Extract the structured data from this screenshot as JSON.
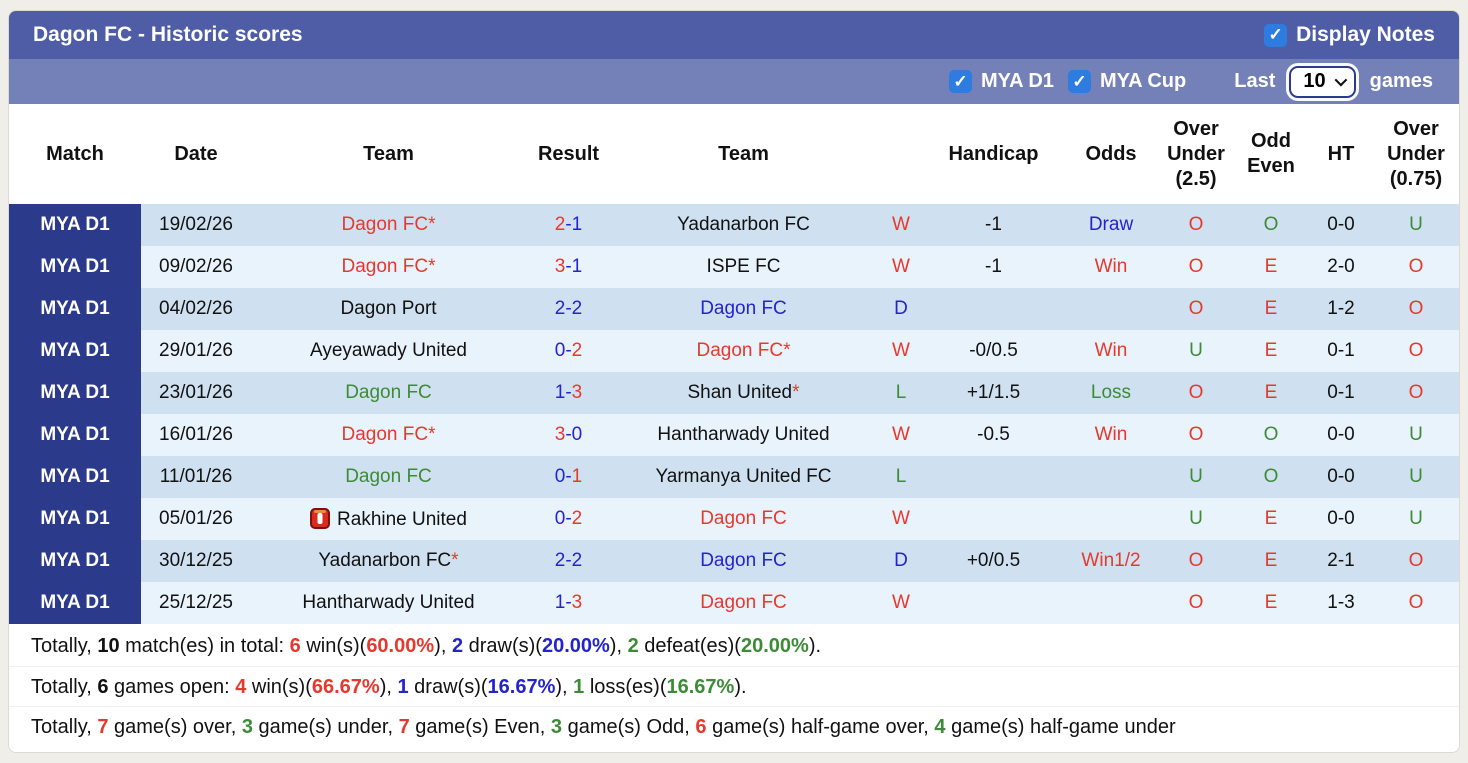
{
  "colors": {
    "red": "#e6392e",
    "blue": "#2424cc",
    "green": "#3d8b37",
    "black": "#111111",
    "navy": "#2c3a8c",
    "title_bar": "#4f5da7",
    "filter_bar": "#7481b8",
    "stripe_dark": "#cfe1f0",
    "stripe_light": "#e9f3fb",
    "checkbox_blue": "#2e7ce0"
  },
  "header": {
    "title": "Dagon FC - Historic scores",
    "display_notes_label": "Display Notes",
    "display_notes_checked": true
  },
  "filter": {
    "leagues": [
      {
        "label": "MYA D1",
        "checked": true
      },
      {
        "label": "MYA Cup",
        "checked": true
      }
    ],
    "last_label": "Last",
    "games_select": {
      "value": "10",
      "options": [
        "10"
      ]
    },
    "games_label": "games"
  },
  "table": {
    "columns": [
      {
        "label": "Match"
      },
      {
        "label": "Date"
      },
      {
        "label": "Team"
      },
      {
        "label": "Result"
      },
      {
        "label": "Team"
      },
      {
        "label": ""
      },
      {
        "label": "Handicap"
      },
      {
        "label": "Odds"
      },
      {
        "label": "Over\nUnder\n(2.5)"
      },
      {
        "label": "Odd\nEven"
      },
      {
        "label": "HT"
      },
      {
        "label": "Over\nUnder\n(0.75)"
      }
    ],
    "rows": [
      {
        "league": "MYA D1",
        "date": "19/02/26",
        "home": {
          "name": "Dagon FC",
          "star": true,
          "color": "red"
        },
        "score": {
          "home": "2",
          "home_color": "red",
          "away": "1",
          "away_color": "blue"
        },
        "away": {
          "name": "Yadanarbon FC",
          "star": false,
          "color": "black"
        },
        "outcome": {
          "text": "W",
          "color": "red"
        },
        "handicap": "-1",
        "odds": {
          "text": "Draw",
          "color": "blue"
        },
        "over_under_25": {
          "text": "O",
          "color": "red"
        },
        "odd_even": {
          "text": "O",
          "color": "green"
        },
        "ht": "0-0",
        "over_under_075": {
          "text": "U",
          "color": "green"
        }
      },
      {
        "league": "MYA D1",
        "date": "09/02/26",
        "home": {
          "name": "Dagon FC",
          "star": true,
          "color": "red"
        },
        "score": {
          "home": "3",
          "home_color": "red",
          "away": "1",
          "away_color": "blue"
        },
        "away": {
          "name": "ISPE FC",
          "star": false,
          "color": "black"
        },
        "outcome": {
          "text": "W",
          "color": "red"
        },
        "handicap": "-1",
        "odds": {
          "text": "Win",
          "color": "red"
        },
        "over_under_25": {
          "text": "O",
          "color": "red"
        },
        "odd_even": {
          "text": "E",
          "color": "red"
        },
        "ht": "2-0",
        "over_under_075": {
          "text": "O",
          "color": "red"
        }
      },
      {
        "league": "MYA D1",
        "date": "04/02/26",
        "home": {
          "name": "Dagon Port",
          "star": false,
          "color": "black"
        },
        "score": {
          "home": "2",
          "home_color": "blue",
          "away": "2",
          "away_color": "blue"
        },
        "away": {
          "name": "Dagon FC",
          "star": false,
          "color": "blue"
        },
        "outcome": {
          "text": "D",
          "color": "blue"
        },
        "handicap": "",
        "odds": {
          "text": "",
          "color": "black"
        },
        "over_under_25": {
          "text": "O",
          "color": "red"
        },
        "odd_even": {
          "text": "E",
          "color": "red"
        },
        "ht": "1-2",
        "over_under_075": {
          "text": "O",
          "color": "red"
        }
      },
      {
        "league": "MYA D1",
        "date": "29/01/26",
        "home": {
          "name": "Ayeyawady United",
          "star": false,
          "color": "black"
        },
        "score": {
          "home": "0",
          "home_color": "blue",
          "away": "2",
          "away_color": "red"
        },
        "away": {
          "name": "Dagon FC",
          "star": true,
          "color": "red"
        },
        "outcome": {
          "text": "W",
          "color": "red"
        },
        "handicap": "-0/0.5",
        "odds": {
          "text": "Win",
          "color": "red"
        },
        "over_under_25": {
          "text": "U",
          "color": "green"
        },
        "odd_even": {
          "text": "E",
          "color": "red"
        },
        "ht": "0-1",
        "over_under_075": {
          "text": "O",
          "color": "red"
        }
      },
      {
        "league": "MYA D1",
        "date": "23/01/26",
        "home": {
          "name": "Dagon FC",
          "star": false,
          "color": "green"
        },
        "score": {
          "home": "1",
          "home_color": "blue",
          "away": "3",
          "away_color": "red"
        },
        "away": {
          "name": "Shan United",
          "star": true,
          "color": "black"
        },
        "outcome": {
          "text": "L",
          "color": "green"
        },
        "handicap": "+1/1.5",
        "odds": {
          "text": "Loss",
          "color": "green"
        },
        "over_under_25": {
          "text": "O",
          "color": "red"
        },
        "odd_even": {
          "text": "E",
          "color": "red"
        },
        "ht": "0-1",
        "over_under_075": {
          "text": "O",
          "color": "red"
        }
      },
      {
        "league": "MYA D1",
        "date": "16/01/26",
        "home": {
          "name": "Dagon FC",
          "star": true,
          "color": "red"
        },
        "score": {
          "home": "3",
          "home_color": "red",
          "away": "0",
          "away_color": "blue"
        },
        "away": {
          "name": "Hantharwady United",
          "star": false,
          "color": "black"
        },
        "outcome": {
          "text": "W",
          "color": "red"
        },
        "handicap": "-0.5",
        "odds": {
          "text": "Win",
          "color": "red"
        },
        "over_under_25": {
          "text": "O",
          "color": "red"
        },
        "odd_even": {
          "text": "O",
          "color": "green"
        },
        "ht": "0-0",
        "over_under_075": {
          "text": "U",
          "color": "green"
        }
      },
      {
        "league": "MYA D1",
        "date": "11/01/26",
        "home": {
          "name": "Dagon FC",
          "star": false,
          "color": "green"
        },
        "score": {
          "home": "0",
          "home_color": "blue",
          "away": "1",
          "away_color": "red"
        },
        "away": {
          "name": "Yarmanya United FC",
          "star": false,
          "color": "black"
        },
        "outcome": {
          "text": "L",
          "color": "green"
        },
        "handicap": "",
        "odds": {
          "text": "",
          "color": "black"
        },
        "over_under_25": {
          "text": "U",
          "color": "green"
        },
        "odd_even": {
          "text": "O",
          "color": "green"
        },
        "ht": "0-0",
        "over_under_075": {
          "text": "U",
          "color": "green"
        }
      },
      {
        "league": "MYA D1",
        "date": "05/01/26",
        "home": {
          "name": "Rakhine United",
          "star": false,
          "color": "black",
          "red_card_icon": true
        },
        "score": {
          "home": "0",
          "home_color": "blue",
          "away": "2",
          "away_color": "red"
        },
        "away": {
          "name": "Dagon FC",
          "star": false,
          "color": "red"
        },
        "outcome": {
          "text": "W",
          "color": "red"
        },
        "handicap": "",
        "odds": {
          "text": "",
          "color": "black"
        },
        "over_under_25": {
          "text": "U",
          "color": "green"
        },
        "odd_even": {
          "text": "E",
          "color": "red"
        },
        "ht": "0-0",
        "over_under_075": {
          "text": "U",
          "color": "green"
        }
      },
      {
        "league": "MYA D1",
        "date": "30/12/25",
        "home": {
          "name": "Yadanarbon FC",
          "star": true,
          "color": "black"
        },
        "score": {
          "home": "2",
          "home_color": "blue",
          "away": "2",
          "away_color": "blue"
        },
        "away": {
          "name": "Dagon FC",
          "star": false,
          "color": "blue"
        },
        "outcome": {
          "text": "D",
          "color": "blue"
        },
        "handicap": "+0/0.5",
        "odds": {
          "text": "Win1/2",
          "color": "red"
        },
        "over_under_25": {
          "text": "O",
          "color": "red"
        },
        "odd_even": {
          "text": "E",
          "color": "red"
        },
        "ht": "2-1",
        "over_under_075": {
          "text": "O",
          "color": "red"
        }
      },
      {
        "league": "MYA D1",
        "date": "25/12/25",
        "home": {
          "name": "Hantharwady United",
          "star": false,
          "color": "black"
        },
        "score": {
          "home": "1",
          "home_color": "blue",
          "away": "3",
          "away_color": "red"
        },
        "away": {
          "name": "Dagon FC",
          "star": false,
          "color": "red"
        },
        "outcome": {
          "text": "W",
          "color": "red"
        },
        "handicap": "",
        "odds": {
          "text": "",
          "color": "black"
        },
        "over_under_25": {
          "text": "O",
          "color": "red"
        },
        "odd_even": {
          "text": "E",
          "color": "red"
        },
        "ht": "1-3",
        "over_under_075": {
          "text": "O",
          "color": "red"
        }
      }
    ]
  },
  "footer": {
    "lines": [
      [
        {
          "t": "Totally, "
        },
        {
          "t": "10",
          "b": true
        },
        {
          "t": " match(es) in total: "
        },
        {
          "t": "6",
          "b": true,
          "c": "red"
        },
        {
          "t": " win(s)("
        },
        {
          "t": "60.00%",
          "b": true,
          "c": "red"
        },
        {
          "t": "), "
        },
        {
          "t": "2",
          "b": true,
          "c": "blue"
        },
        {
          "t": " draw(s)("
        },
        {
          "t": "20.00%",
          "b": true,
          "c": "blue"
        },
        {
          "t": "), "
        },
        {
          "t": "2",
          "b": true,
          "c": "green"
        },
        {
          "t": " defeat(es)("
        },
        {
          "t": "20.00%",
          "b": true,
          "c": "green"
        },
        {
          "t": ")."
        }
      ],
      [
        {
          "t": "Totally, "
        },
        {
          "t": "6",
          "b": true
        },
        {
          "t": " games open: "
        },
        {
          "t": "4",
          "b": true,
          "c": "red"
        },
        {
          "t": " win(s)("
        },
        {
          "t": "66.67%",
          "b": true,
          "c": "red"
        },
        {
          "t": "), "
        },
        {
          "t": "1",
          "b": true,
          "c": "blue"
        },
        {
          "t": " draw(s)("
        },
        {
          "t": "16.67%",
          "b": true,
          "c": "blue"
        },
        {
          "t": "), "
        },
        {
          "t": "1",
          "b": true,
          "c": "green"
        },
        {
          "t": " loss(es)("
        },
        {
          "t": "16.67%",
          "b": true,
          "c": "green"
        },
        {
          "t": ")."
        }
      ],
      [
        {
          "t": "Totally, "
        },
        {
          "t": "7",
          "b": true,
          "c": "red"
        },
        {
          "t": " game(s) over, "
        },
        {
          "t": "3",
          "b": true,
          "c": "green"
        },
        {
          "t": " game(s) under, "
        },
        {
          "t": "7",
          "b": true,
          "c": "red"
        },
        {
          "t": " game(s) Even, "
        },
        {
          "t": "3",
          "b": true,
          "c": "green"
        },
        {
          "t": " game(s) Odd, "
        },
        {
          "t": "6",
          "b": true,
          "c": "red"
        },
        {
          "t": " game(s) half-game over, "
        },
        {
          "t": "4",
          "b": true,
          "c": "green"
        },
        {
          "t": " game(s) half-game under"
        }
      ]
    ]
  }
}
